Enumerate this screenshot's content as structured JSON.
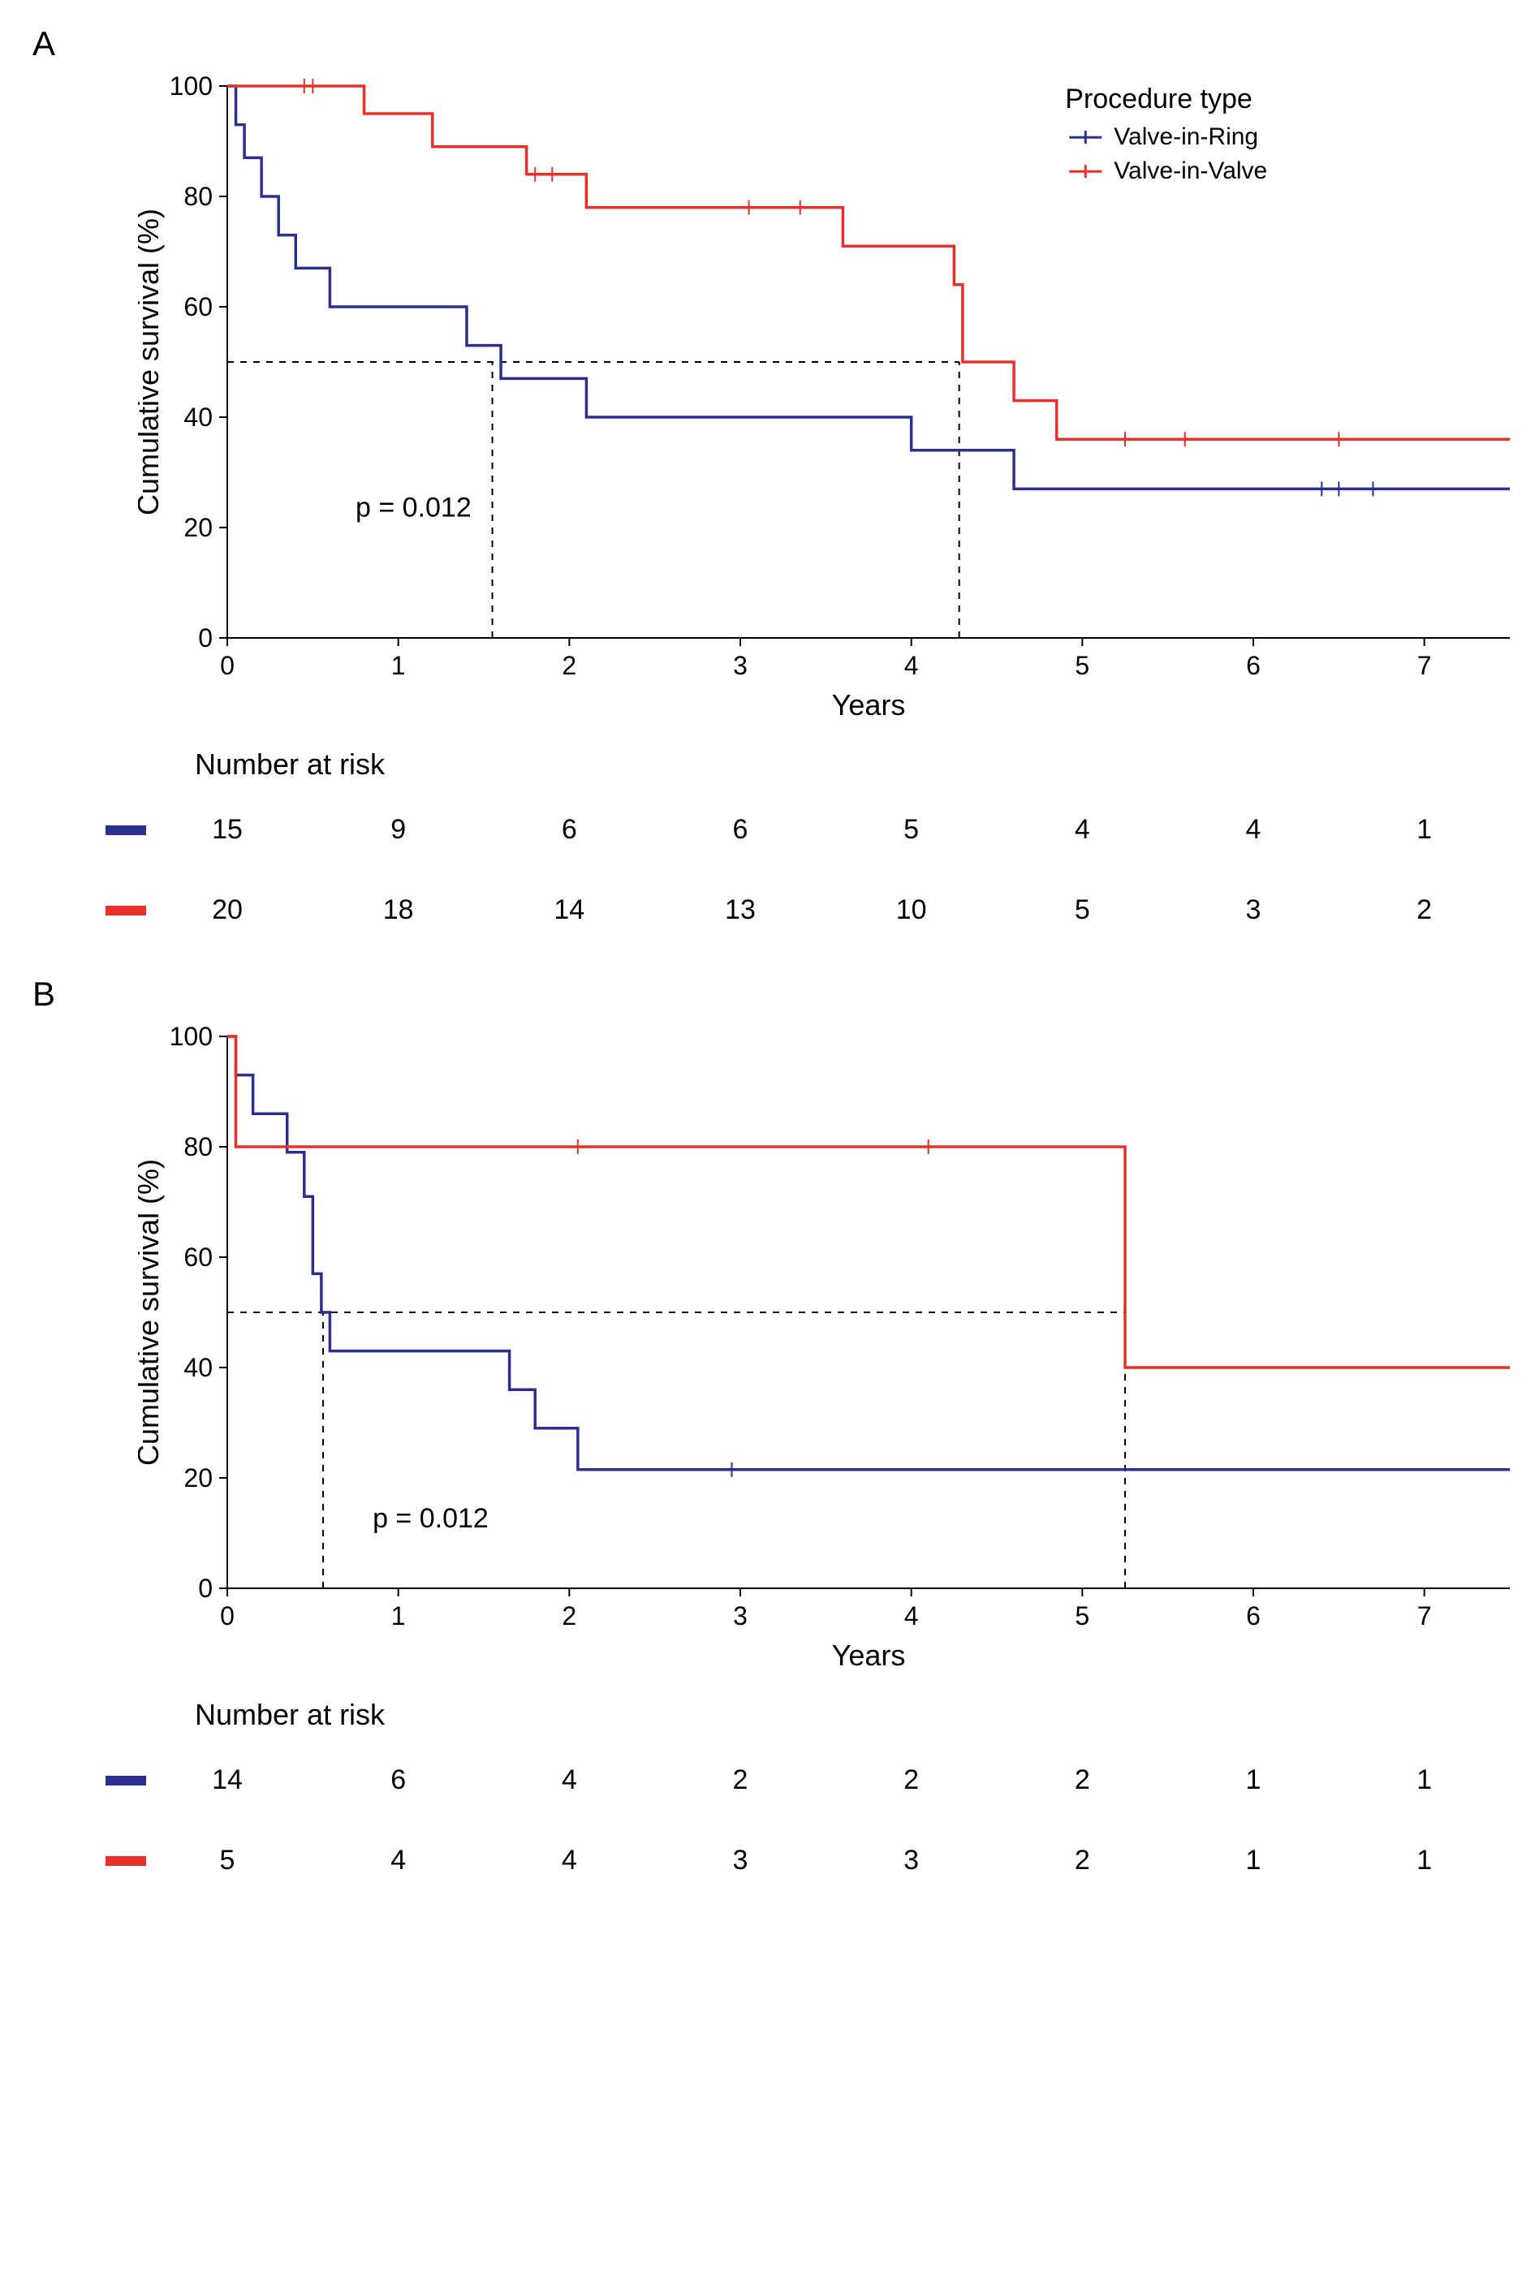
{
  "legend": {
    "title": "Procedure type",
    "items": [
      {
        "label": "Valve-in-Ring",
        "color": "#2b2f8e"
      },
      {
        "label": "Valve-in-Valve",
        "color": "#e8302a"
      }
    ]
  },
  "axis": {
    "xlabel": "Years",
    "ylabel": "Cumulative survival (%)",
    "xmin": 0,
    "xmax": 7.5,
    "ymin": 0,
    "ymax": 100,
    "xticks": [
      0,
      1,
      2,
      3,
      4,
      5,
      6,
      7
    ],
    "yticks": [
      0,
      20,
      40,
      60,
      80,
      100
    ],
    "tick_fontsize": 32,
    "label_fontsize": 36,
    "line_width": 2
  },
  "colors": {
    "vir": "#2b2f8e",
    "viv": "#e8302a",
    "background": "#ffffff",
    "axis": "#000000",
    "dash": "#000000"
  },
  "line_width": 3.5,
  "censor_mark": "+",
  "dash_pattern": "8 8",
  "panelA": {
    "label": "A",
    "p_text": "p = 0.012",
    "p_xy": [
      0.75,
      22
    ],
    "show_legend": true,
    "vir": {
      "steps": [
        [
          0,
          100
        ],
        [
          0.05,
          93
        ],
        [
          0.1,
          87
        ],
        [
          0.2,
          80
        ],
        [
          0.3,
          73
        ],
        [
          0.4,
          67
        ],
        [
          0.6,
          60
        ],
        [
          1.4,
          53
        ],
        [
          1.6,
          47
        ],
        [
          2.1,
          40
        ],
        [
          4.0,
          34
        ],
        [
          4.6,
          27
        ],
        [
          7.5,
          27
        ]
      ],
      "censors": [
        [
          6.4,
          27
        ],
        [
          6.5,
          27
        ],
        [
          6.7,
          27
        ]
      ]
    },
    "viv": {
      "steps": [
        [
          0,
          100
        ],
        [
          0.8,
          95
        ],
        [
          1.2,
          89
        ],
        [
          1.75,
          84
        ],
        [
          2.1,
          78
        ],
        [
          3.6,
          71
        ],
        [
          4.25,
          64
        ],
        [
          4.3,
          50
        ],
        [
          4.6,
          43
        ],
        [
          4.85,
          36
        ],
        [
          7.5,
          36
        ]
      ],
      "censors": [
        [
          0.45,
          100
        ],
        [
          0.5,
          100
        ],
        [
          1.8,
          84
        ],
        [
          1.9,
          84
        ],
        [
          3.05,
          78
        ],
        [
          3.35,
          78
        ],
        [
          5.25,
          36
        ],
        [
          5.6,
          36
        ],
        [
          6.5,
          36
        ]
      ]
    },
    "median_lines": [
      {
        "x": 1.55,
        "y": 50
      },
      {
        "x": 4.28,
        "y": 50
      }
    ],
    "risk_title": "Number at risk",
    "risk": {
      "x": [
        0,
        1,
        2,
        3,
        4,
        5,
        6,
        7
      ],
      "vir": [
        15,
        9,
        6,
        6,
        5,
        4,
        4,
        1
      ],
      "viv": [
        20,
        18,
        14,
        13,
        10,
        5,
        3,
        2
      ]
    }
  },
  "panelB": {
    "label": "B",
    "p_text": "p = 0.012",
    "p_xy": [
      0.85,
      11
    ],
    "show_legend": false,
    "vir": {
      "steps": [
        [
          0,
          100
        ],
        [
          0.05,
          93
        ],
        [
          0.15,
          86
        ],
        [
          0.35,
          79
        ],
        [
          0.45,
          71
        ],
        [
          0.5,
          57
        ],
        [
          0.55,
          50
        ],
        [
          0.6,
          43
        ],
        [
          1.65,
          36
        ],
        [
          1.8,
          29
        ],
        [
          2.05,
          21.5
        ],
        [
          7.5,
          21.5
        ]
      ],
      "censors": [
        [
          2.95,
          21.5
        ]
      ]
    },
    "viv": {
      "steps": [
        [
          0,
          100
        ],
        [
          0.05,
          80
        ],
        [
          5.25,
          40
        ],
        [
          7.5,
          40
        ]
      ],
      "censors": [
        [
          2.05,
          80
        ],
        [
          4.1,
          80
        ]
      ]
    },
    "median_lines": [
      {
        "x": 0.56,
        "y": 50
      },
      {
        "x": 5.25,
        "y": 50
      }
    ],
    "risk_title": "Number at risk",
    "risk": {
      "x": [
        0,
        1,
        2,
        3,
        4,
        5,
        6,
        7
      ],
      "vir": [
        14,
        6,
        4,
        2,
        2,
        2,
        1,
        1
      ],
      "viv": [
        5,
        4,
        4,
        3,
        3,
        2,
        1,
        1
      ]
    }
  }
}
